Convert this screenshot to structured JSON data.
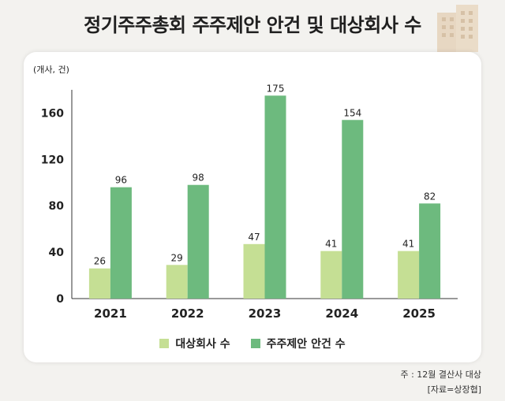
{
  "title": "정기주주총회 주주제안 안건 및 대상회사 수",
  "chart_data": {
    "type": "bar",
    "unit_label": "(개사, 건)",
    "categories": [
      "2021",
      "2022",
      "2023",
      "2024",
      "2025"
    ],
    "series": [
      {
        "name": "대상회사 수",
        "values": [
          26,
          29,
          47,
          41,
          41
        ],
        "color": "#c5df94"
      },
      {
        "name": "주주제안 안건 수",
        "values": [
          96,
          98,
          175,
          154,
          82
        ],
        "color": "#6dba7e"
      }
    ],
    "ylim": [
      0,
      180
    ],
    "yticks": [
      0,
      40,
      80,
      120,
      160
    ],
    "grid": false,
    "legend": "bottom-center"
  },
  "notes": {
    "line1": "주 : 12월 결산사 대상",
    "line2": "[자료=상장협]"
  }
}
